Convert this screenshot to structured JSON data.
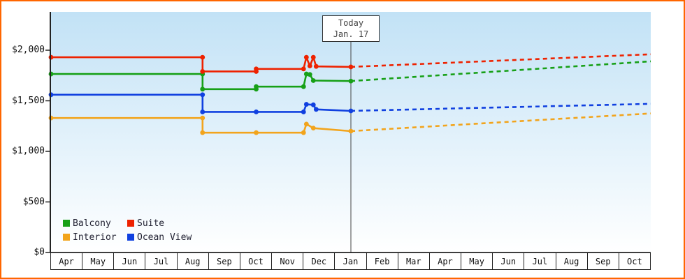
{
  "frame": {
    "border_color": "#ff6600",
    "background": "#ffffff"
  },
  "today": {
    "line1": "Today",
    "line2": "Jan. 17"
  },
  "chart_data": {
    "type": "line",
    "title": "",
    "xlabel": "",
    "ylabel": "",
    "x_categories": [
      "Apr",
      "May",
      "Jun",
      "Jul",
      "Aug",
      "Sep",
      "Oct",
      "Nov",
      "Dec",
      "Jan",
      "Feb",
      "Mar",
      "Apr",
      "May",
      "Jun",
      "Jul",
      "Aug",
      "Sep",
      "Oct"
    ],
    "today_index": 9,
    "ylim": [
      0,
      2380
    ],
    "grid": false,
    "yticks": [
      {
        "value": 0,
        "label": "$0"
      },
      {
        "value": 500,
        "label": "$500"
      },
      {
        "value": 1000,
        "label": "$1,000"
      },
      {
        "value": 1500,
        "label": "$1,500"
      },
      {
        "value": 2000,
        "label": "$2,000"
      }
    ],
    "plot_background": {
      "top": "#c2e2f6",
      "bottom": "#ffffff"
    },
    "series": [
      {
        "name": "Interior",
        "color": "#f2a41c",
        "solid_points": [
          [
            -0.5,
            1330
          ],
          [
            4.3,
            1330
          ],
          [
            4.3,
            1185
          ],
          [
            6,
            1185
          ],
          [
            7.5,
            1185
          ],
          [
            7.59,
            1270
          ],
          [
            7.81,
            1230
          ],
          [
            9,
            1200
          ]
        ],
        "forecast": {
          "from": [
            9,
            1200
          ],
          "to": [
            18.5,
            1375
          ]
        }
      },
      {
        "name": "Ocean View",
        "color": "#1040e0",
        "solid_points": [
          [
            -0.5,
            1560
          ],
          [
            4.3,
            1560
          ],
          [
            4.3,
            1390
          ],
          [
            6,
            1390
          ],
          [
            7.5,
            1390
          ],
          [
            7.59,
            1465
          ],
          [
            7.81,
            1460
          ],
          [
            7.9,
            1415
          ],
          [
            9,
            1400
          ]
        ],
        "forecast": {
          "from": [
            9,
            1400
          ],
          "to": [
            18.5,
            1470
          ]
        }
      },
      {
        "name": "Balcony",
        "color": "#17a017",
        "solid_points": [
          [
            -0.5,
            1765
          ],
          [
            4.3,
            1765
          ],
          [
            4.3,
            1615
          ],
          [
            6,
            1615
          ],
          [
            6,
            1640
          ],
          [
            7.5,
            1640
          ],
          [
            7.59,
            1765
          ],
          [
            7.7,
            1760
          ],
          [
            7.81,
            1700
          ],
          [
            9,
            1695
          ]
        ],
        "forecast": {
          "from": [
            9,
            1695
          ],
          "to": [
            18.5,
            1890
          ]
        }
      },
      {
        "name": "Suite",
        "color": "#ee2200",
        "solid_points": [
          [
            -0.5,
            1930
          ],
          [
            4.3,
            1930
          ],
          [
            4.3,
            1790
          ],
          [
            6,
            1790
          ],
          [
            6,
            1815
          ],
          [
            7.5,
            1815
          ],
          [
            7.59,
            1930
          ],
          [
            7.7,
            1845
          ],
          [
            7.81,
            1930
          ],
          [
            7.9,
            1840
          ],
          [
            9,
            1835
          ]
        ],
        "forecast": {
          "from": [
            9,
            1835
          ],
          "to": [
            18.5,
            1960
          ]
        }
      }
    ],
    "legend": {
      "rows": [
        [
          "Balcony",
          "Suite"
        ],
        [
          "Interior",
          "Ocean View"
        ]
      ],
      "position": "bottom-left"
    }
  }
}
